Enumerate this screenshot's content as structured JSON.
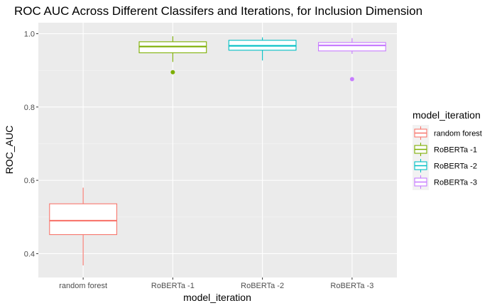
{
  "chart_data": {
    "type": "boxplot",
    "title": "ROC AUC Across Different Classifers and Iterations, for Inclusion Dimension",
    "xlabel": "model_iteration",
    "ylabel": "ROC_AUC",
    "ylim": [
      0.335,
      1.03
    ],
    "yticks": [
      0.4,
      0.6,
      0.8,
      1.0
    ],
    "ytick_labels": [
      "0.4",
      "0.6",
      "0.8",
      "1.0"
    ],
    "grid": true,
    "legend_position": "right",
    "legend_title": "model_iteration",
    "categories": [
      "random forest",
      "RoBERTa -1",
      "RoBERTa -2",
      "RoBERTa -3"
    ],
    "series": [
      {
        "name": "random forest",
        "color": "#F8766D",
        "min": 0.368,
        "q1": 0.452,
        "median": 0.49,
        "q3": 0.536,
        "max": 0.58,
        "outliers": []
      },
      {
        "name": "RoBERTa -1",
        "color": "#7CAE00",
        "min": 0.923,
        "q1": 0.948,
        "median": 0.965,
        "q3": 0.978,
        "max": 0.993,
        "outliers": [
          0.895
        ]
      },
      {
        "name": "RoBERTa -2",
        "color": "#00BFC4",
        "min": 0.927,
        "q1": 0.955,
        "median": 0.967,
        "q3": 0.982,
        "max": 0.99,
        "outliers": []
      },
      {
        "name": "RoBERTa -3",
        "color": "#C77CFF",
        "min": 0.945,
        "q1": 0.953,
        "median": 0.968,
        "q3": 0.976,
        "max": 0.988,
        "outliers": [
          0.876
        ]
      }
    ]
  }
}
